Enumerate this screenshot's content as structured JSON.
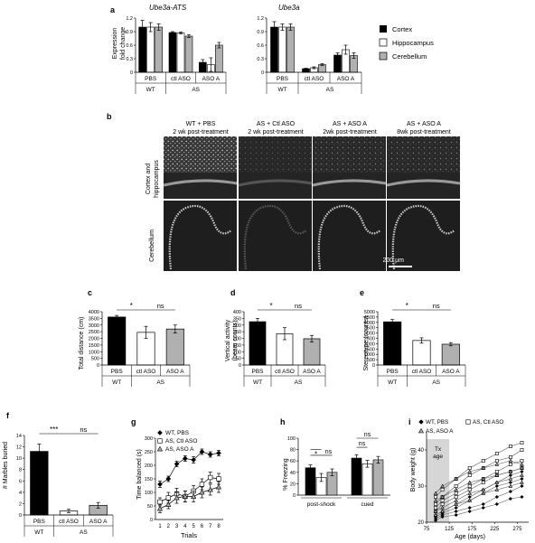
{
  "panel_letters": {
    "a": "a",
    "b": "b",
    "c": "c",
    "d": "d",
    "e": "e",
    "f": "f",
    "g": "g",
    "h": "h",
    "i": "i"
  },
  "colors": {
    "black": "#000000",
    "white": "#ffffff",
    "gray": "#b0b0b0"
  },
  "panel_b": {
    "columns": [
      {
        "line1": "WT + PBS",
        "line2": "2 wk post-treatment"
      },
      {
        "line1": "AS + Ctl ASO",
        "line2": "2 wk post-treatment"
      },
      {
        "line1": "AS + ASO A",
        "line2": "2wk post-treatment"
      },
      {
        "line1": "AS + ASO A",
        "line2": "8wk post-treatment"
      }
    ],
    "rows": [
      {
        "line1": "Cortex and",
        "line2": "hippocampus"
      },
      {
        "line1": "Cerebellum",
        "line2": ""
      }
    ],
    "scalebar": "200 µm"
  },
  "chart_data": [
    {
      "id": "a1",
      "type": "bar",
      "title": "Ube3a-ATS",
      "ylabel_line1": "Expression",
      "ylabel_line2": "fold change",
      "ylim": [
        0,
        1.2
      ],
      "yticks": [
        "0",
        "0.3",
        "0.6",
        "0.9",
        "1.2"
      ],
      "groups": [
        "PBS",
        "ctl ASO",
        "ASO A"
      ],
      "genotypes": [
        "WT",
        "AS"
      ],
      "series": [
        {
          "name": "Cortex",
          "values": [
            1.0,
            0.88,
            0.22
          ],
          "errors": [
            0.15,
            0.02,
            0.06
          ]
        },
        {
          "name": "Hippocampus",
          "values": [
            1.0,
            0.87,
            0.17
          ],
          "errors": [
            0.1,
            0.02,
            0.15
          ]
        },
        {
          "name": "Cerebellum",
          "values": [
            1.0,
            0.8,
            0.6
          ],
          "errors": [
            0.07,
            0.03,
            0.06
          ]
        }
      ]
    },
    {
      "id": "a2",
      "type": "bar",
      "title": "Ube3a",
      "ylim": [
        0,
        1.2
      ],
      "yticks": [
        "0",
        "0.3",
        "0.6",
        "0.9",
        "1.2"
      ],
      "groups": [
        "PBS",
        "ctl ASO",
        "ASO A"
      ],
      "genotypes": [
        "WT",
        "AS"
      ],
      "series": [
        {
          "name": "Cortex",
          "values": [
            1.0,
            0.08,
            0.38
          ],
          "errors": [
            0.12,
            0.01,
            0.05
          ]
        },
        {
          "name": "Hippocampus",
          "values": [
            1.0,
            0.1,
            0.5
          ],
          "errors": [
            0.07,
            0.02,
            0.1
          ]
        },
        {
          "name": "Cerebellum",
          "values": [
            1.0,
            0.17,
            0.37
          ],
          "errors": [
            0.07,
            0.02,
            0.06
          ]
        }
      ],
      "legend": [
        "Cortex",
        "Hippocampus",
        "Cerebellum"
      ]
    },
    {
      "id": "c",
      "type": "bar",
      "ylabel": "Total distance (cm)",
      "ylim": [
        0,
        4000
      ],
      "yticks": [
        "0",
        "500",
        "1000",
        "1500",
        "2000",
        "2500",
        "3000",
        "3500",
        "4000"
      ],
      "categories": [
        "PBS",
        "ctl ASO",
        "ASO A"
      ],
      "genotypes": [
        "WT",
        "AS"
      ],
      "values": [
        3600,
        2450,
        2700
      ],
      "errors": [
        120,
        450,
        300
      ],
      "sig": [
        {
          "label": "*"
        },
        {
          "label": "ns"
        }
      ]
    },
    {
      "id": "d",
      "type": "bar",
      "ylabel_line1": "Vertical activity",
      "ylabel_line2": "(beam counts)",
      "ylim": [
        0,
        400
      ],
      "yticks": [
        "0",
        "50",
        "100",
        "150",
        "200",
        "250",
        "300",
        "350",
        "400"
      ],
      "categories": [
        "PBS",
        "ctl ASO",
        "ASO A"
      ],
      "genotypes": [
        "WT",
        "AS"
      ],
      "values": [
        325,
        235,
        197
      ],
      "errors": [
        25,
        45,
        25
      ],
      "sig": [
        {
          "label": "*"
        },
        {
          "label": "ns"
        }
      ]
    },
    {
      "id": "e",
      "type": "bar",
      "ylabel": "Stereotype (counts)",
      "ylim": [
        0,
        5000
      ],
      "yticks": [
        "0",
        "500",
        "1000",
        "1500",
        "2000",
        "2500",
        "3000",
        "3500",
        "4000",
        "4500",
        "5000"
      ],
      "categories": [
        "PBS",
        "ctl ASO",
        "ASO A"
      ],
      "genotypes": [
        "WT",
        "AS"
      ],
      "values": [
        4050,
        2300,
        1950
      ],
      "errors": [
        220,
        250,
        150
      ],
      "sig": [
        {
          "label": "*"
        },
        {
          "label": "ns"
        }
      ]
    },
    {
      "id": "f",
      "type": "bar",
      "ylabel": "# Marbles buried",
      "ylim": [
        0,
        14
      ],
      "yticks": [
        "0",
        "2",
        "4",
        "6",
        "8",
        "10",
        "12",
        "14"
      ],
      "categories": [
        "PBS",
        "ctl ASO",
        "ASO A"
      ],
      "genotypes": [
        "WT",
        "AS"
      ],
      "values": [
        11.2,
        0.7,
        1.7
      ],
      "errors": [
        1.3,
        0.3,
        0.5
      ],
      "sig": [
        {
          "label": "***"
        },
        {
          "label": "ns"
        }
      ]
    },
    {
      "id": "g",
      "type": "line",
      "xlabel": "Trials",
      "ylabel": "Time balanced (s)",
      "ylim": [
        0,
        300
      ],
      "yticks": [
        "0",
        "50",
        "100",
        "150",
        "200",
        "250",
        "300"
      ],
      "x": [
        1,
        2,
        3,
        4,
        5,
        6,
        7,
        8
      ],
      "series": [
        {
          "name": "WT, PBS",
          "marker": "diamond",
          "values": [
            130,
            150,
            205,
            225,
            220,
            250,
            240,
            245
          ],
          "errors": [
            12,
            10,
            10,
            10,
            12,
            10,
            10,
            10
          ]
        },
        {
          "name": "AS, Ctl ASO",
          "marker": "square",
          "values": [
            65,
            80,
            95,
            85,
            105,
            130,
            155,
            150
          ],
          "errors": [
            15,
            20,
            20,
            20,
            20,
            20,
            20,
            20
          ]
        },
        {
          "name": "AS, ASO A",
          "marker": "triangle",
          "values": [
            40,
            55,
            80,
            85,
            85,
            100,
            110,
            120
          ],
          "errors": [
            15,
            15,
            20,
            20,
            20,
            20,
            20,
            20
          ]
        }
      ]
    },
    {
      "id": "h",
      "type": "bar",
      "ylabel": "% Freezing",
      "ylim": [
        0,
        100
      ],
      "yticks": [
        "0",
        "20",
        "40",
        "60",
        "80",
        "100"
      ],
      "groups": [
        "post-shock",
        "cued"
      ],
      "series": [
        {
          "name": "WT, PBS",
          "values": [
            48,
            65
          ],
          "errors": [
            5,
            6
          ]
        },
        {
          "name": "AS, Ctl ASO",
          "values": [
            31,
            55
          ],
          "errors": [
            7,
            6
          ]
        },
        {
          "name": "AS, ASO A",
          "values": [
            40,
            62
          ],
          "errors": [
            6,
            6
          ]
        }
      ],
      "sig": [
        {
          "label": "*"
        },
        {
          "label": "ns"
        },
        {
          "label": "ns"
        },
        {
          "label": "ns"
        }
      ]
    },
    {
      "id": "i",
      "type": "line",
      "xlabel": "Age (days)",
      "ylabel": "Body weight (g)",
      "xlim": [
        75,
        300
      ],
      "ylim": [
        20,
        45
      ],
      "xticks": [
        "75",
        "125",
        "175",
        "225",
        "275"
      ],
      "yticks": [
        "20",
        "30",
        "40"
      ],
      "shade_label_line1": "Tx",
      "shade_label_line2": "age",
      "shade_x": [
        75,
        125
      ],
      "legend": [
        {
          "name": "WT, PBS",
          "marker": "diamond"
        },
        {
          "name": "AS, Ctl ASO",
          "marker": "square"
        },
        {
          "name": "AS, ASO A",
          "marker": "triangle"
        }
      ],
      "series": [
        {
          "name": "WT, PBS",
          "marker": "diamond",
          "x": [
            95,
            110,
            140,
            170,
            200,
            230,
            260,
            285
          ],
          "values": [
            21.5,
            22.5,
            24,
            26,
            28,
            30,
            31,
            32
          ]
        },
        {
          "name": "WT, PBS",
          "marker": "diamond",
          "x": [
            95,
            110,
            140,
            170,
            200,
            230,
            260,
            285
          ],
          "values": [
            21,
            22,
            23,
            24,
            25,
            27,
            28.5,
            30
          ]
        },
        {
          "name": "WT, PBS",
          "marker": "diamond",
          "x": [
            95,
            110,
            140,
            170,
            200,
            230,
            260,
            285
          ],
          "values": [
            22,
            23,
            25,
            27,
            29,
            31,
            33,
            34
          ]
        },
        {
          "name": "WT, PBS",
          "marker": "diamond",
          "x": [
            95,
            110,
            140,
            170,
            200,
            230,
            260,
            285
          ],
          "values": [
            20.5,
            21.5,
            22,
            23,
            24,
            25,
            26.5,
            27
          ]
        },
        {
          "name": "AS, Ctl ASO",
          "marker": "square",
          "x": [
            95,
            110,
            140,
            170,
            200,
            230,
            260,
            285
          ],
          "values": [
            27,
            29,
            32,
            35,
            37,
            39,
            41,
            42
          ]
        },
        {
          "name": "AS, Ctl ASO",
          "marker": "square",
          "x": [
            95,
            110,
            140,
            170,
            200,
            230,
            260,
            285
          ],
          "values": [
            25,
            27,
            30,
            33,
            35,
            37,
            38,
            40
          ]
        },
        {
          "name": "AS, Ctl ASO",
          "marker": "square",
          "x": [
            95,
            110,
            140,
            170,
            200,
            230,
            260,
            285
          ],
          "values": [
            24,
            26,
            28,
            30,
            32,
            34,
            36,
            37
          ]
        },
        {
          "name": "AS, Ctl ASO",
          "marker": "square",
          "x": [
            95,
            110,
            140,
            170,
            200,
            230,
            260,
            285
          ],
          "values": [
            23,
            25,
            27,
            29,
            31,
            33,
            34,
            35
          ]
        },
        {
          "name": "AS, ASO A",
          "marker": "triangle",
          "x": [
            95,
            110,
            140,
            170,
            200,
            230,
            260,
            285
          ],
          "values": [
            28,
            30,
            32,
            34,
            35,
            36,
            37,
            36
          ]
        },
        {
          "name": "AS, ASO A",
          "marker": "triangle",
          "x": [
            95,
            110,
            140,
            170,
            200,
            230,
            260,
            285
          ],
          "values": [
            26,
            27,
            29,
            31,
            32,
            33,
            34,
            35
          ]
        },
        {
          "name": "AS, ASO A",
          "marker": "triangle",
          "x": [
            95,
            110,
            140,
            170,
            200,
            230,
            260,
            285
          ],
          "values": [
            23,
            24,
            26,
            28,
            29,
            31,
            32,
            33
          ]
        },
        {
          "name": "AS, ASO A",
          "marker": "triangle",
          "x": [
            95,
            110,
            140,
            170,
            200,
            230,
            260,
            285
          ],
          "values": [
            22,
            23,
            25,
            26,
            28,
            29,
            30,
            31
          ]
        }
      ]
    }
  ]
}
